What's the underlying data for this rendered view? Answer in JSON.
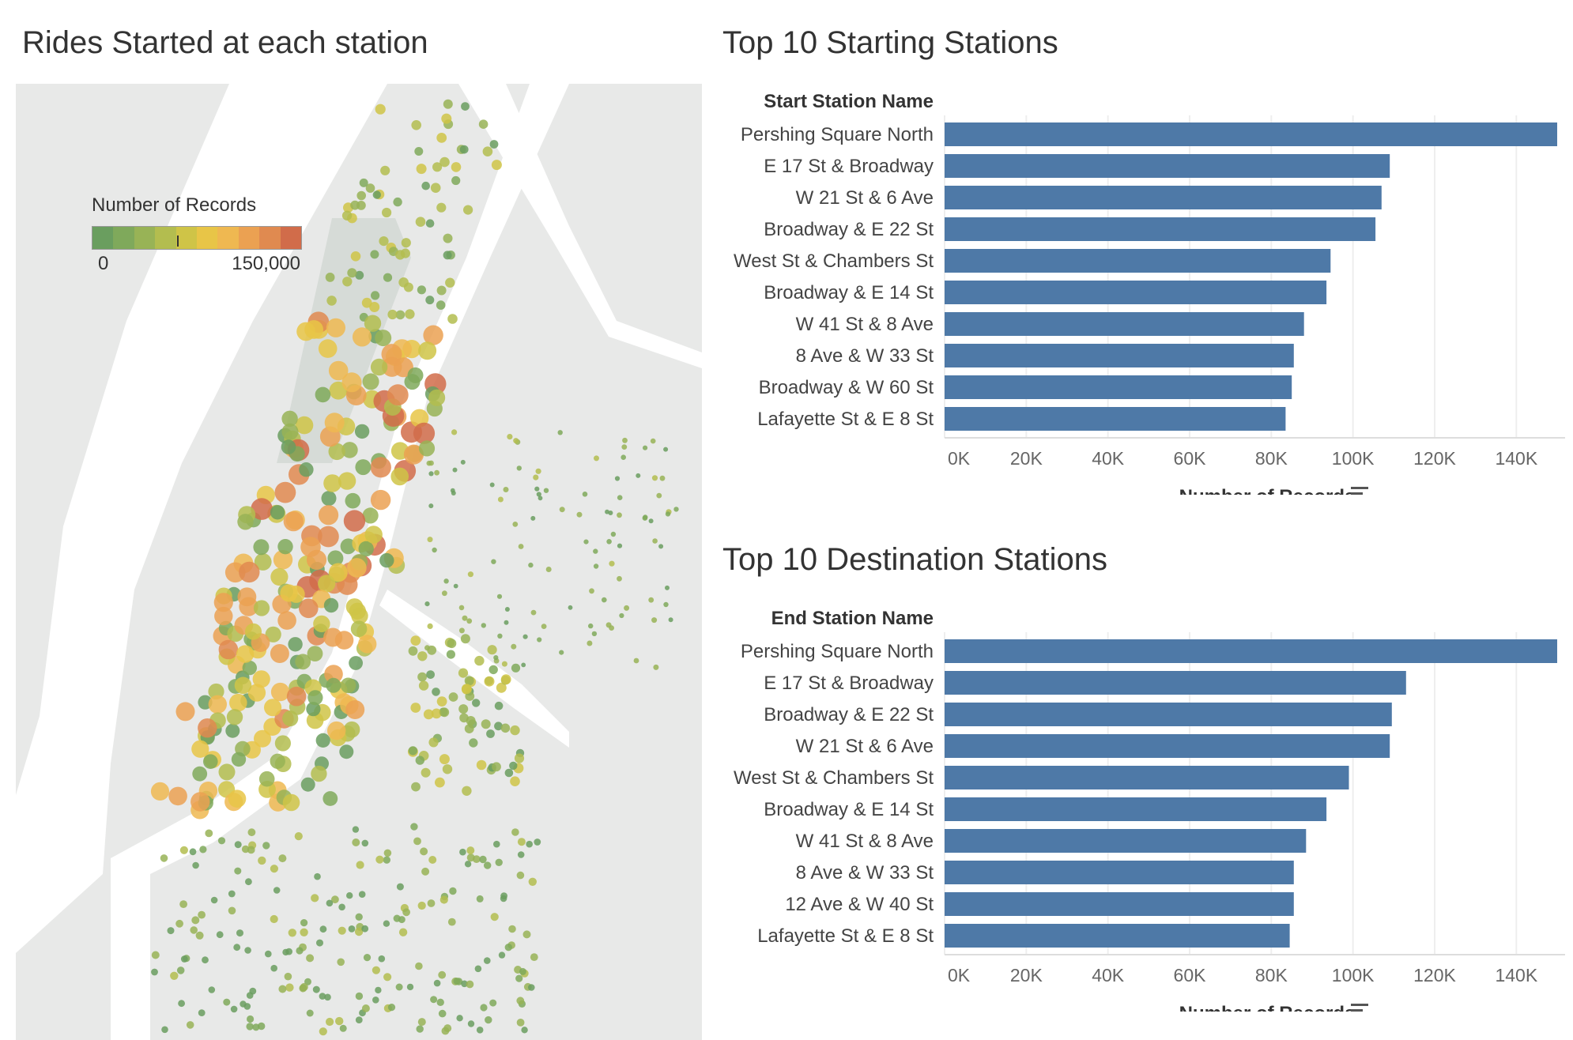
{
  "map_panel": {
    "title": "Rides Started at each station",
    "legend": {
      "title": "Number of Records",
      "min_label": "0",
      "max_label": "150,000",
      "colors": [
        "#6a9e5f",
        "#7fa95b",
        "#98b356",
        "#b3bd4f",
        "#cfc447",
        "#e8c547",
        "#efb851",
        "#eba152",
        "#e08a50",
        "#d16c4a"
      ]
    }
  },
  "colors": {
    "bar": "#4e79a7",
    "land": "#e8e9e8",
    "water": "#ffffff",
    "park": "#d6dbd7",
    "grid": "#eeeeee",
    "axis_text": "#666666"
  },
  "chart_data": [
    {
      "type": "bar",
      "orientation": "horizontal",
      "title": "Top 10 Starting Stations",
      "category_header": "Start Station Name",
      "categories": [
        "Pershing Square North",
        "E 17 St & Broadway",
        "W 21 St & 6 Ave",
        "Broadway & E 22 St",
        "West St & Chambers St",
        "Broadway & E 14 St",
        "W 41 St & 8 Ave",
        "8 Ave & W 33 St",
        "Broadway & W 60 St",
        "Lafayette St & E 8 St"
      ],
      "values": [
        150000,
        109000,
        107000,
        105500,
        94500,
        93500,
        88000,
        85500,
        85000,
        83500
      ],
      "xlabel": "Number of Records",
      "xticks": [
        "0K",
        "20K",
        "40K",
        "60K",
        "80K",
        "100K",
        "120K",
        "140K"
      ],
      "xlim": [
        0,
        150000
      ],
      "grid": true
    },
    {
      "type": "bar",
      "orientation": "horizontal",
      "title": "Top 10 Destination Stations",
      "category_header": "End Station Name",
      "categories": [
        "Pershing Square North",
        "E 17 St & Broadway",
        "Broadway & E 22 St",
        "W 21 St & 6 Ave",
        "West St & Chambers St",
        "Broadway & E 14 St",
        "W 41 St & 8 Ave",
        "8 Ave & W 33 St",
        "12 Ave & W 40 St",
        "Lafayette St & E 8 St"
      ],
      "values": [
        150000,
        113000,
        109500,
        109000,
        99000,
        93500,
        88500,
        85500,
        85500,
        84500
      ],
      "xlabel": "Number of Records",
      "xticks": [
        "0K",
        "20K",
        "40K",
        "60K",
        "80K",
        "100K",
        "120K",
        "140K"
      ],
      "xlim": [
        0,
        150000
      ],
      "grid": true
    }
  ]
}
